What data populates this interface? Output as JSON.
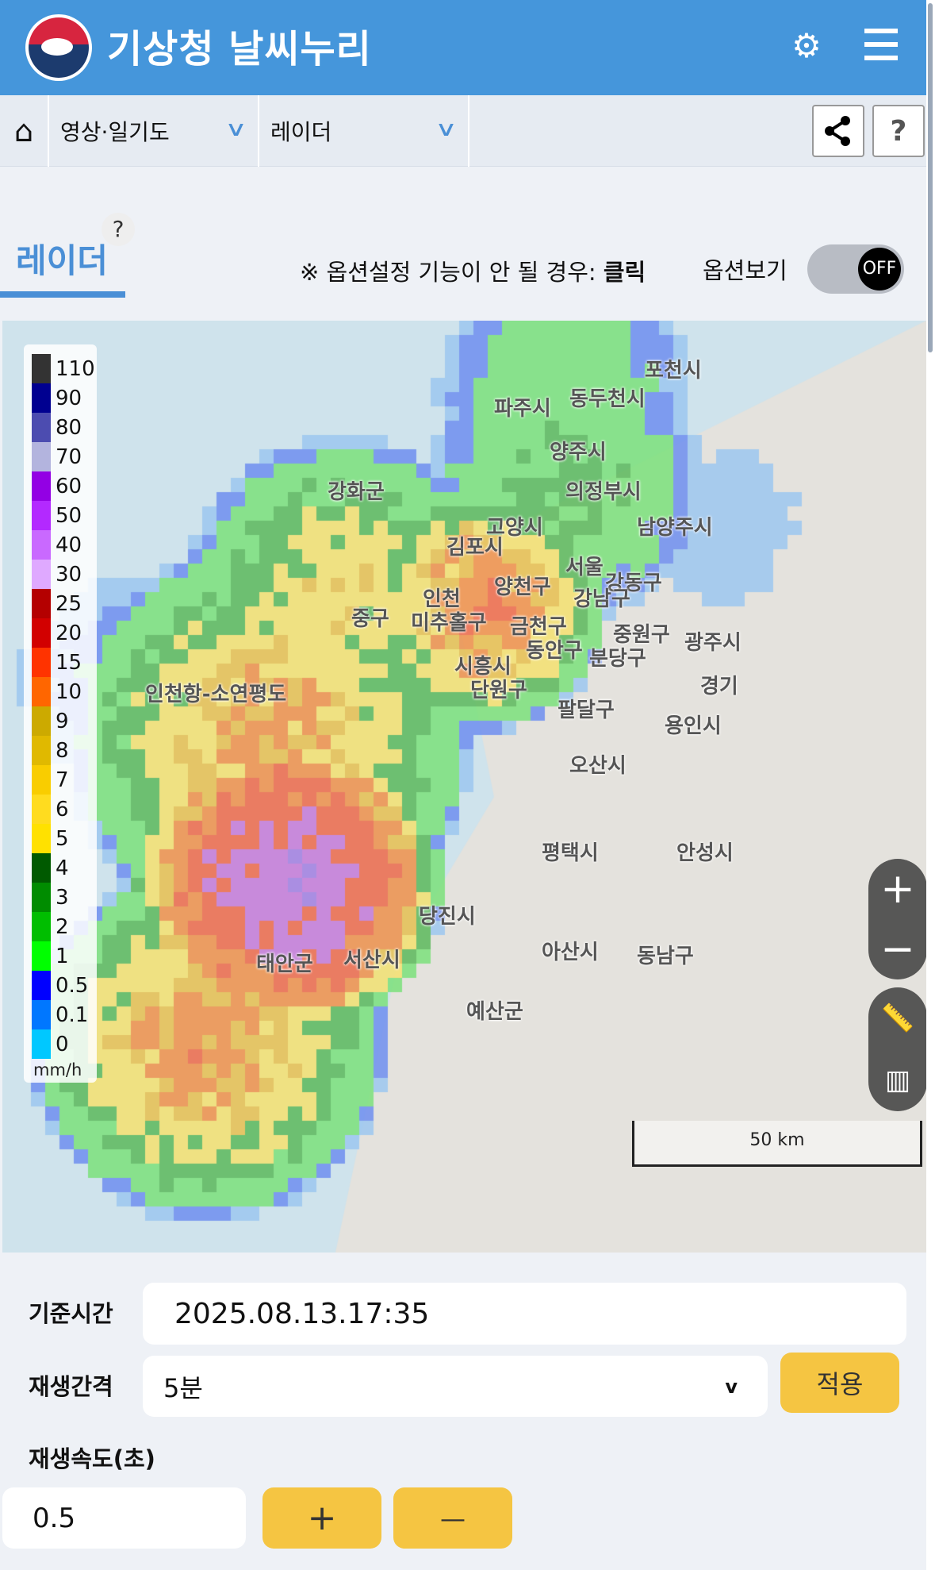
{
  "header": {
    "title": "기상청 날씨누리",
    "logo": "government-emblem",
    "icons": [
      "gear-icon",
      "menu-icon"
    ]
  },
  "nav": {
    "home_icon": "home-icon",
    "dropdown1": "영상·일기도",
    "dropdown2": "레이더",
    "chevron": "∨",
    "share_icon": "share-icon",
    "help": "?"
  },
  "section": {
    "title": "레이더",
    "help": "?",
    "note_prefix": "※ 옵션설정 기능이 안 될 경우: ",
    "note_link": "클릭",
    "option_label": "옵션보기",
    "toggle_state": "OFF"
  },
  "legend": {
    "unit": "mm/h",
    "items": [
      {
        "v": "110",
        "c": "#333333"
      },
      {
        "v": "90",
        "c": "#000090"
      },
      {
        "v": "80",
        "c": "#4c4cb0"
      },
      {
        "v": "70",
        "c": "#b3b4de"
      },
      {
        "v": "60",
        "c": "#9300e4"
      },
      {
        "v": "50",
        "c": "#b329ff"
      },
      {
        "v": "40",
        "c": "#c969ff"
      },
      {
        "v": "30",
        "c": "#dfa9ff"
      },
      {
        "v": "25",
        "c": "#b40000"
      },
      {
        "v": "20",
        "c": "#d20000"
      },
      {
        "v": "15",
        "c": "#ff3300"
      },
      {
        "v": "10",
        "c": "#ff6600"
      },
      {
        "v": "9",
        "c": "#ccaa00"
      },
      {
        "v": "8",
        "c": "#e0b900"
      },
      {
        "v": "7",
        "c": "#f9cd00"
      },
      {
        "v": "6",
        "c": "#ffdc1f"
      },
      {
        "v": "5",
        "c": "#ffe100"
      },
      {
        "v": "4",
        "c": "#005a00"
      },
      {
        "v": "3",
        "c": "#008c00"
      },
      {
        "v": "2",
        "c": "#00be00"
      },
      {
        "v": "1",
        "c": "#00ff00"
      },
      {
        "v": "0.5",
        "c": "#0000ff"
      },
      {
        "v": "0.1",
        "c": "#0077ff"
      },
      {
        "v": "0",
        "c": "#00c8ff"
      }
    ]
  },
  "map": {
    "places": [
      "포천시",
      "동두천시",
      "파주시",
      "양주시",
      "강화군",
      "의정부시",
      "고양시",
      "남양주시",
      "김포시",
      "서울",
      "강동구",
      "인천",
      "양천구",
      "중구",
      "미추홀구",
      "금천구",
      "강남구",
      "중원구",
      "광주시",
      "동안구",
      "분당구",
      "시흥시",
      "단원구",
      "인천항-소연평도",
      "팔달구",
      "경기",
      "용인시",
      "오산시",
      "평택시",
      "안성시",
      "당진시",
      "아산시",
      "동남구",
      "태안군",
      "서산시",
      "예산군"
    ],
    "zoom_in": "+",
    "zoom_out": "−",
    "scale": "50 km",
    "tool_icons": [
      "ruler-icon",
      "layers-icon"
    ]
  },
  "controls": {
    "base_time_label": "기준시간",
    "base_time": "2025.08.13.17:35",
    "interval_label": "재생간격",
    "interval": "5분",
    "apply": "적용",
    "speed_label": "재생속도(초)",
    "speed": "0.5",
    "plus": "+",
    "minus": "—"
  }
}
